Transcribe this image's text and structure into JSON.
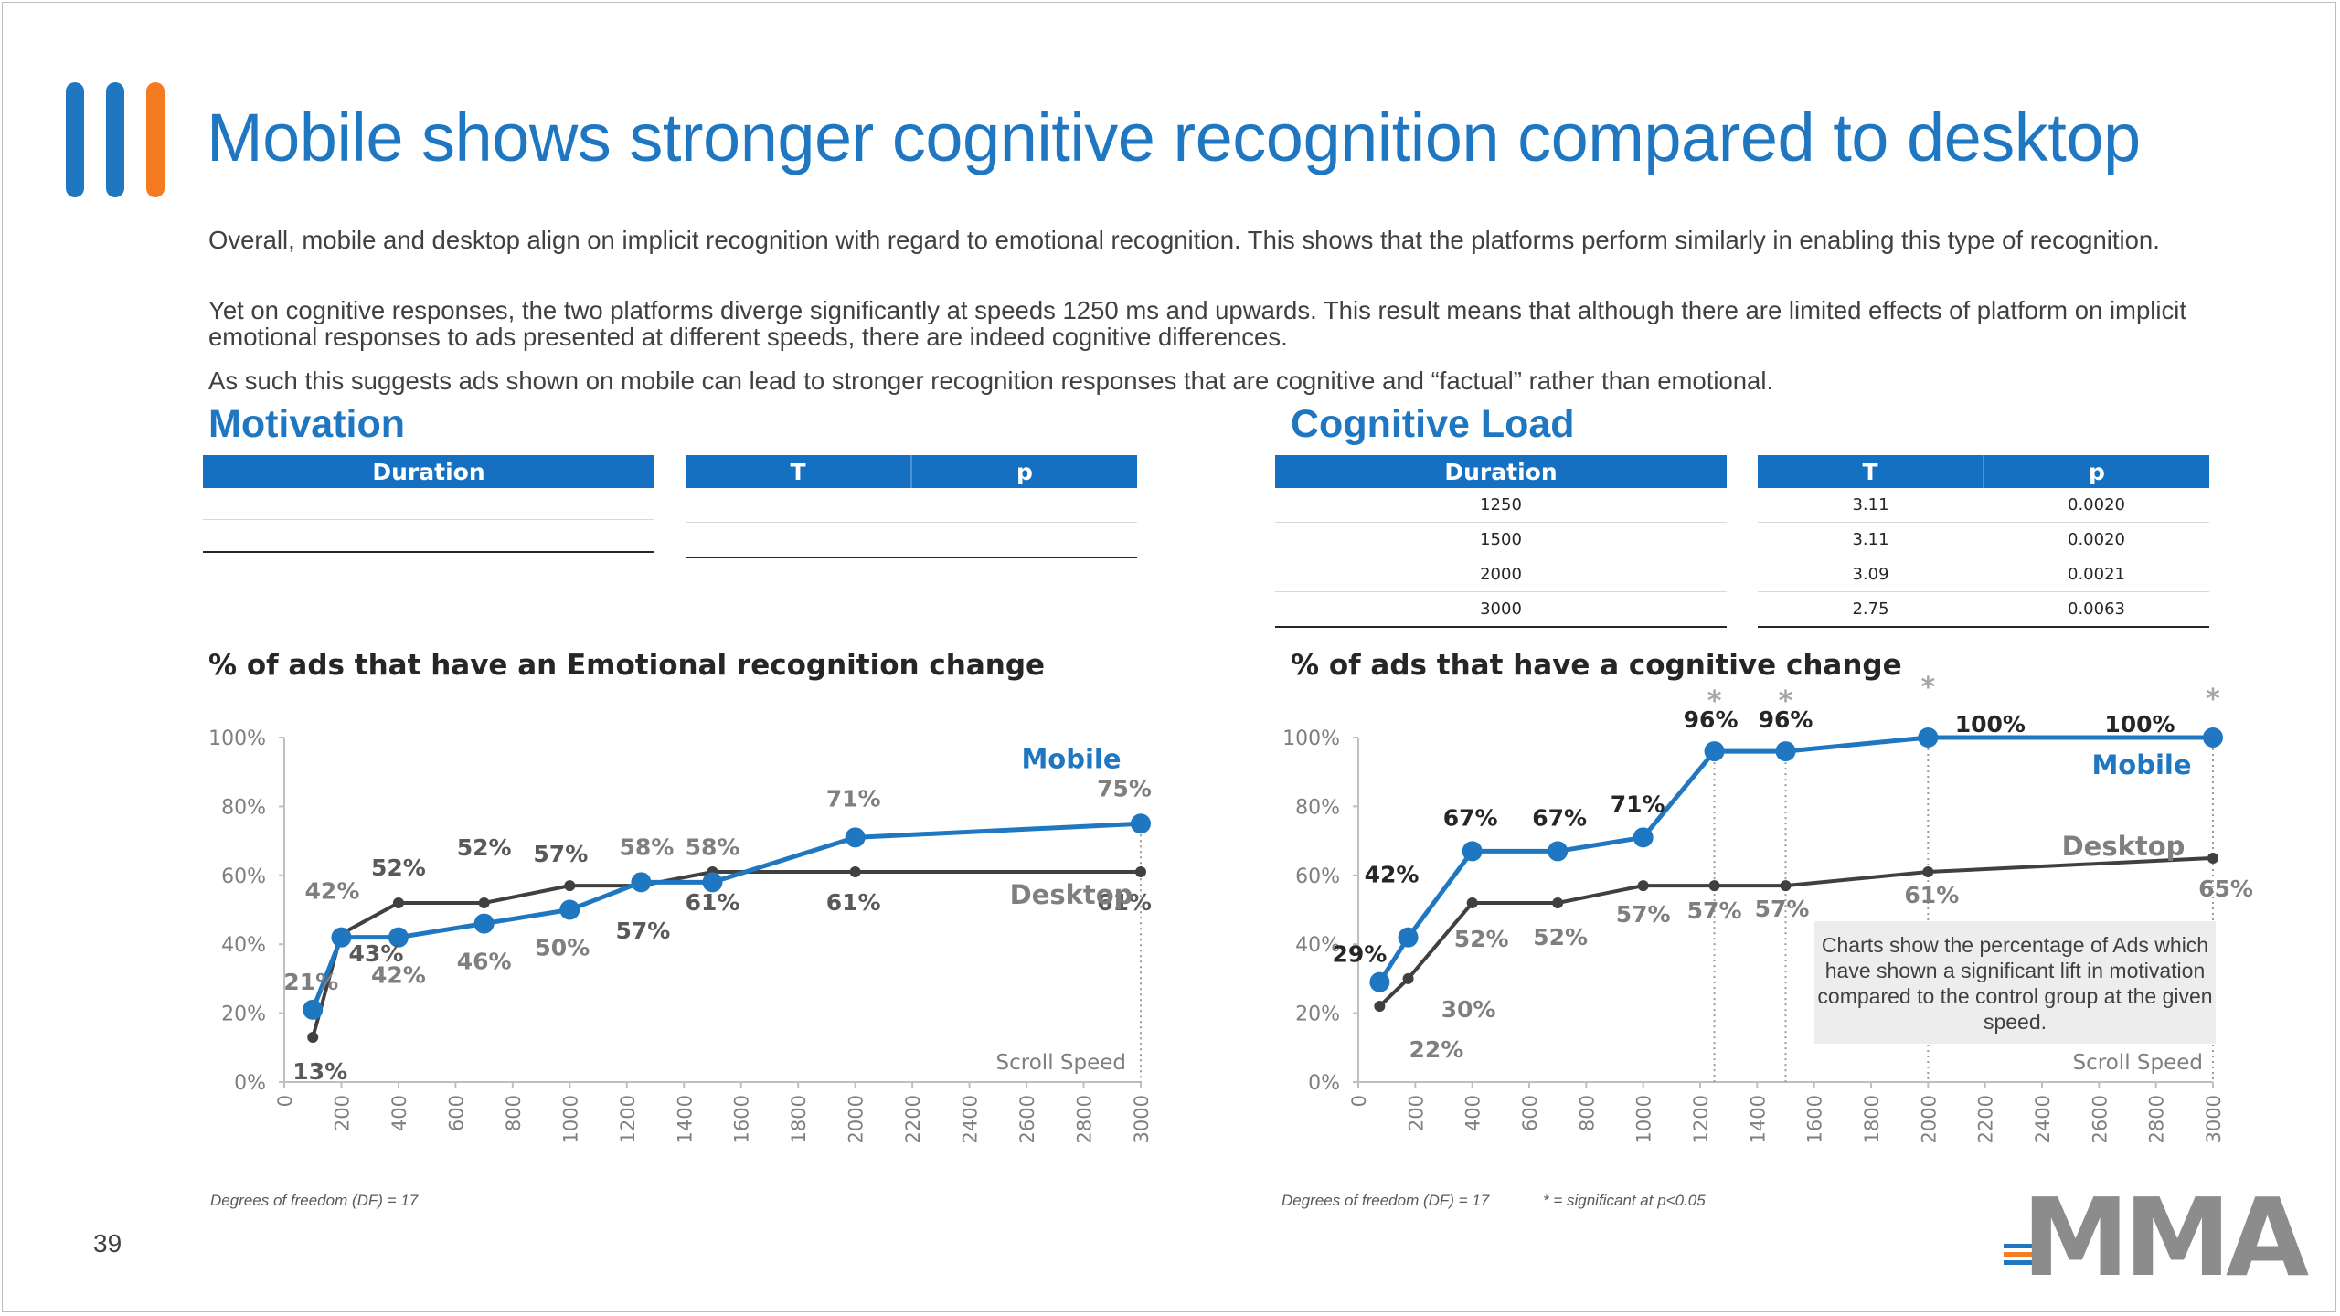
{
  "page": {
    "title": "Mobile shows stronger cognitive recognition compared to desktop",
    "paragraphs": [
      "Overall, mobile and desktop align on implicit recognition with regard to emotional recognition.  This shows that the platforms perform similarly in enabling this type of recognition.",
      "Yet on cognitive responses, the two platforms diverge significantly at speeds 1250 ms and upwards. This result means that although there are limited effects of platform on implicit emotional responses to ads presented at different speeds, there are indeed cognitive differences.",
      "As such this suggests ads shown on mobile can lead to stronger recognition responses that are cognitive and “factual” rather than emotional."
    ],
    "page_number": "39",
    "logo_text": "MMA",
    "colors": {
      "accent": "#1f77c1",
      "mobile": "#1f77c1",
      "desktop": "#404040",
      "orange": "#f47b20",
      "table_header": "#1570c1"
    }
  },
  "motivation": {
    "heading": "Motivation",
    "table": {
      "col_duration": "Duration",
      "col_t": "T",
      "col_p": "p",
      "rows": []
    },
    "chart_title": "% of ads that have an Emotional recognition change",
    "footnote": "Degrees of freedom (DF) = 17"
  },
  "cognitive": {
    "heading": "Cognitive Load",
    "table": {
      "col_duration": "Duration",
      "col_t": "T",
      "col_p": "p",
      "rows": [
        {
          "duration": "1250",
          "t": "3.11",
          "p": "0.0020"
        },
        {
          "duration": "1500",
          "t": "3.11",
          "p": "0.0020"
        },
        {
          "duration": "2000",
          "t": "3.09",
          "p": "0.0021"
        },
        {
          "duration": "3000",
          "t": "2.75",
          "p": "0.0063"
        }
      ]
    },
    "chart_title": "% of ads that have a cognitive change",
    "footnote_df": "Degrees of freedom (DF) = 17",
    "footnote_sig": "* = significant at p<0.05",
    "note": "Charts show the percentage of Ads which have shown a significant lift in motivation compared to the control group at the given speed."
  },
  "chart_data": [
    {
      "type": "line",
      "title": "% of ads that have an Emotional recognition change",
      "xlabel": "Scroll Speed",
      "xlim": [
        0,
        3000
      ],
      "ylim": [
        0,
        100
      ],
      "y_ticks": [
        "0%",
        "20%",
        "40%",
        "60%",
        "80%",
        "100%"
      ],
      "x_ticks": [
        "0",
        "200",
        "400",
        "600",
        "800",
        "1000",
        "1200",
        "1400",
        "1600",
        "1800",
        "2000",
        "2200",
        "2400",
        "2600",
        "2800",
        "3000"
      ],
      "legend_position": "in-chart labels (right)",
      "series": [
        {
          "name": "Mobile",
          "x": [
            100,
            200,
            400,
            700,
            1000,
            1250,
            1500,
            2000,
            3000
          ],
          "values": [
            21,
            42,
            42,
            46,
            50,
            58,
            58,
            71,
            75
          ],
          "labels": [
            "21%",
            "42%",
            "42%",
            "46%",
            "50%",
            "58%",
            "58%",
            "71%",
            "75%"
          ]
        },
        {
          "name": "Desktop",
          "x": [
            100,
            200,
            400,
            700,
            1000,
            1250,
            1500,
            2000,
            3000
          ],
          "values": [
            13,
            43,
            52,
            52,
            57,
            57,
            61,
            61,
            61
          ],
          "labels": [
            "13%",
            "43%",
            "52%",
            "52%",
            "57%",
            "57%",
            "61%",
            "61%",
            "61%"
          ]
        }
      ],
      "marker_lines_at": [
        3000
      ]
    },
    {
      "type": "line",
      "title": "% of ads that have a cognitive change",
      "xlabel": "Scroll Speed",
      "xlim": [
        0,
        3000
      ],
      "ylim": [
        0,
        100
      ],
      "y_ticks": [
        "0%",
        "20%",
        "40%",
        "60%",
        "80%",
        "100%"
      ],
      "x_ticks": [
        "0",
        "200",
        "400",
        "600",
        "800",
        "1000",
        "1200",
        "1400",
        "1600",
        "1800",
        "2000",
        "2200",
        "2400",
        "2600",
        "2800",
        "3000"
      ],
      "legend_position": "in-chart labels (right)",
      "series": [
        {
          "name": "Mobile",
          "x": [
            75,
            175,
            400,
            700,
            1000,
            1250,
            1500,
            2000,
            3000
          ],
          "values": [
            29,
            42,
            67,
            67,
            71,
            96,
            96,
            100,
            100
          ],
          "labels": [
            "29%",
            "42%",
            "67%",
            "67%",
            "71%",
            "96%",
            "96%",
            "100%",
            "100%"
          ]
        },
        {
          "name": "Desktop",
          "x": [
            75,
            175,
            400,
            700,
            1000,
            1250,
            1500,
            2000,
            3000
          ],
          "values": [
            22,
            30,
            52,
            52,
            57,
            57,
            57,
            61,
            65
          ],
          "labels": [
            "22%",
            "30%",
            "52%",
            "52%",
            "57%",
            "57%",
            "57%",
            "61%",
            "65%"
          ]
        }
      ],
      "significance_marker": "*",
      "significant_at": [
        1250,
        1500,
        2000,
        3000
      ]
    }
  ]
}
